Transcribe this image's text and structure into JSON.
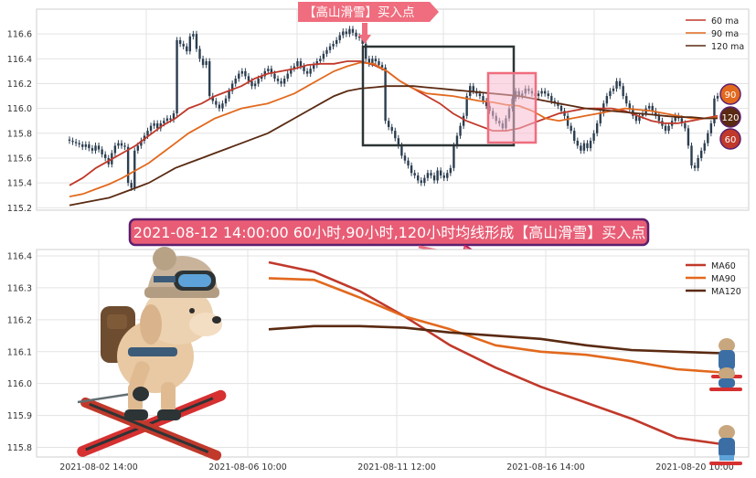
{
  "colors": {
    "ma60": "#c0392b",
    "ma90": "#e2691e",
    "ma120": "#5a2a12",
    "candle": "#2c3e50",
    "box": "#2d3436",
    "pink_box": "#f06292",
    "tag_bg": "#ef6d7e",
    "banner_bg": "#e85d75",
    "banner_border": "#5b1f6e",
    "badge90": "#e2691e",
    "badge120": "#5a2a12",
    "badge60": "#c0392b"
  },
  "chart_data": [
    {
      "type": "candlestick-with-lines",
      "title": "",
      "ylim": [
        115.18,
        116.8
      ],
      "yticks": [
        "116.6",
        "116.4",
        "116.2",
        "116.0",
        "115.8",
        "115.6",
        "115.4",
        "115.2"
      ],
      "x_count": 200,
      "grid": true,
      "legend_position": "top-right",
      "legend": [
        "60 ma",
        "90 ma",
        "120 ma"
      ],
      "candle_closes": [
        115.74,
        115.73,
        115.72,
        115.71,
        115.69,
        115.71,
        115.68,
        115.66,
        115.7,
        115.67,
        115.63,
        115.6,
        115.55,
        115.64,
        115.7,
        115.72,
        115.7,
        115.69,
        115.4,
        115.36,
        115.66,
        115.7,
        115.74,
        115.78,
        115.82,
        115.86,
        115.88,
        115.84,
        115.88,
        115.9,
        115.92,
        115.91,
        115.96,
        116.55,
        116.52,
        116.5,
        116.46,
        116.58,
        116.6,
        116.48,
        116.4,
        116.35,
        116.38,
        116.1,
        116.06,
        116.03,
        116.0,
        116.04,
        116.08,
        116.14,
        116.2,
        116.24,
        116.28,
        116.3,
        116.26,
        116.22,
        116.18,
        116.2,
        116.24,
        116.26,
        116.3,
        116.32,
        116.28,
        116.24,
        116.22,
        116.2,
        116.24,
        116.28,
        116.32,
        116.34,
        116.38,
        116.34,
        116.3,
        116.28,
        116.32,
        116.35,
        116.38,
        116.4,
        116.44,
        116.47,
        116.5,
        116.52,
        116.55,
        116.59,
        116.62,
        116.6,
        116.64,
        116.61,
        116.58,
        116.57,
        116.52,
        116.4,
        116.36,
        116.4,
        116.38,
        116.35,
        116.33,
        115.9,
        115.85,
        115.82,
        115.76,
        115.7,
        115.62,
        115.58,
        115.54,
        115.48,
        115.46,
        115.42,
        115.4,
        115.44,
        115.48,
        115.46,
        115.42,
        115.5,
        115.46,
        115.44,
        115.48,
        115.52,
        115.7,
        115.78,
        115.86,
        115.94,
        116.1,
        116.18,
        116.14,
        116.12,
        116.1,
        116.06,
        116.02,
        115.98,
        115.94,
        115.9,
        115.88,
        115.84,
        115.92,
        116.0,
        116.08,
        116.14,
        116.1,
        116.12,
        116.16,
        116.14,
        116.12,
        116.1,
        116.12,
        116.14,
        116.12,
        116.1,
        116.06,
        116.04,
        116.02,
        115.98,
        115.94,
        115.86,
        115.82,
        115.74,
        115.7,
        115.66,
        115.72,
        115.68,
        115.74,
        115.8,
        115.88,
        115.96,
        116.04,
        116.1,
        116.14,
        116.16,
        116.22,
        116.18,
        116.1,
        116.04,
        116.0,
        115.94,
        115.9,
        115.94,
        115.96,
        116.0,
        116.02,
        115.98,
        115.94,
        115.9,
        115.86,
        115.82,
        115.86,
        115.9,
        115.94,
        115.92,
        115.88,
        115.84,
        115.7,
        115.54,
        115.52,
        115.6,
        115.66,
        115.72,
        115.8,
        115.88,
        116.08,
        116.1
      ],
      "series": [
        {
          "name": "60 ma",
          "values": [
            115.38,
            115.44,
            115.52,
            115.58,
            115.64,
            115.7,
            115.78,
            115.86,
            115.92,
            116.0,
            116.04,
            116.1,
            116.14,
            116.18,
            116.24,
            116.28,
            116.3,
            116.32,
            116.35,
            116.36,
            116.36,
            116.38,
            116.38,
            116.35,
            116.3,
            116.22,
            116.16,
            116.1,
            116.04,
            115.96,
            115.9,
            115.86,
            115.82,
            115.82,
            115.84,
            115.88,
            115.92,
            115.96,
            115.98,
            116.0,
            116.0,
            116.0,
            115.98,
            115.94,
            115.9,
            115.88,
            115.88,
            115.9,
            115.92,
            115.94
          ]
        },
        {
          "name": "90 ma",
          "values": [
            115.29,
            115.31,
            115.35,
            115.39,
            115.44,
            115.5,
            115.56,
            115.64,
            115.72,
            115.8,
            115.86,
            115.92,
            115.96,
            116.0,
            116.02,
            116.04,
            116.08,
            116.12,
            116.18,
            116.24,
            116.3,
            116.34,
            116.37,
            116.36,
            116.3,
            116.22,
            116.16,
            116.12,
            116.11,
            116.1,
            116.08,
            116.06,
            116.05,
            116.03,
            116.02,
            115.98,
            115.92,
            115.9,
            115.92,
            115.94,
            115.96,
            115.98,
            116.0,
            115.99,
            115.98,
            115.96,
            115.94,
            115.92,
            115.92,
            115.93
          ]
        },
        {
          "name": "120 ma",
          "values": [
            115.22,
            115.24,
            115.26,
            115.28,
            115.32,
            115.36,
            115.4,
            115.46,
            115.52,
            115.56,
            115.6,
            115.64,
            115.68,
            115.72,
            115.76,
            115.8,
            115.86,
            115.92,
            115.98,
            116.04,
            116.1,
            116.14,
            116.16,
            116.17,
            116.18,
            116.18,
            116.18,
            116.17,
            116.16,
            116.15,
            116.14,
            116.13,
            116.12,
            116.11,
            116.1,
            116.08,
            116.06,
            116.04,
            116.02,
            116.0,
            115.99,
            115.98,
            115.97,
            115.96,
            115.95,
            115.94,
            115.93,
            115.93,
            115.92,
            115.92
          ]
        }
      ]
    },
    {
      "type": "line",
      "title": "",
      "ylim": [
        115.77,
        116.42
      ],
      "yticks": [
        "116.4",
        "116.3",
        "116.2",
        "116.1",
        "116.0",
        "115.9",
        "115.8"
      ],
      "x_labels": [
        "2021-08-02 14:00",
        "2021-08-06 10:00",
        "2021-08-11 12:00",
        "2021-08-16 14:00",
        "2021-08-20 10:00"
      ],
      "grid": true,
      "legend_position": "top-right",
      "series": [
        {
          "name": "MA60",
          "values": [
            116.38,
            116.35,
            116.29,
            116.21,
            116.12,
            116.05,
            115.99,
            115.94,
            115.89,
            115.83,
            115.81
          ]
        },
        {
          "name": "MA90",
          "values": [
            116.33,
            116.325,
            116.27,
            116.21,
            116.17,
            116.12,
            116.1,
            116.09,
            116.07,
            116.045,
            116.035
          ]
        },
        {
          "name": "MA120",
          "values": [
            116.17,
            116.18,
            116.18,
            116.175,
            116.16,
            116.15,
            116.14,
            116.12,
            116.105,
            116.1,
            116.095
          ]
        }
      ]
    }
  ],
  "annotations": {
    "top_tag": "【高山滑雪】买入点",
    "banner": "2021-08-12 14:00:00 60小时,90小时,120小时均线形成【高山滑雪】买入点",
    "badges": [
      "90",
      "120",
      "60"
    ]
  }
}
